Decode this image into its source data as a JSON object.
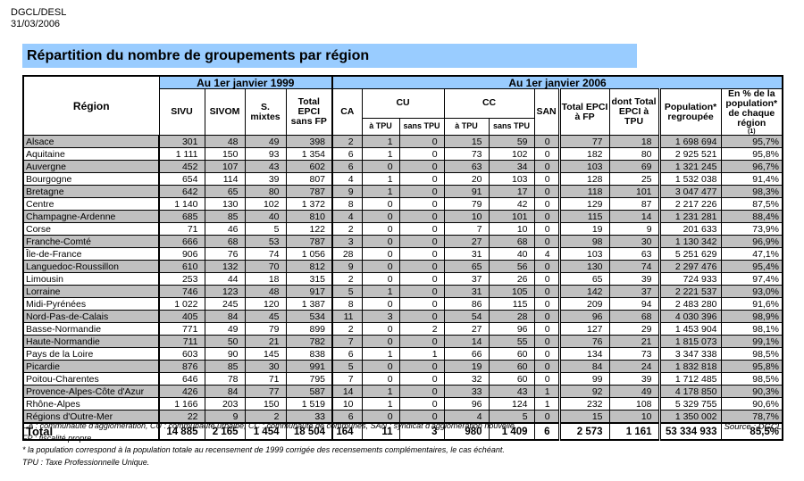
{
  "meta": {
    "org": "DGCL/DESL",
    "date": "31/03/2006"
  },
  "title": "Répartition du nombre de groupements par région",
  "colors": {
    "accent_blue": "#99CCFF",
    "row_grey": "#C0C0C0",
    "border": "#000000"
  },
  "table": {
    "header": {
      "region": "Région",
      "period_1999": "Au 1er janvier 1999",
      "period_2006": "Au 1er janvier 2006",
      "sivu": "SIVU",
      "sivom": "SIVOM",
      "s_mixtes": "S. mixtes",
      "total_epci_sans_fp": "Total EPCI sans FP",
      "ca": "CA",
      "cu": "CU",
      "cc": "CC",
      "san": "SAN",
      "a_tpu": "à TPU",
      "sans_tpu": "sans TPU",
      "total_epci_a_fp": "Total EPCI à FP",
      "dont_total_epci_a_tpu": "dont Total EPCI à TPU",
      "population_regroupee": "Population* regroupée",
      "pct_label": "En % de la population* de chaque région",
      "pct_note": "(1)"
    },
    "rows": [
      {
        "region": "Alsace",
        "values": [
          "301",
          "48",
          "49",
          "398",
          "2",
          "1",
          "0",
          "15",
          "59",
          "0",
          "77",
          "18",
          "1 698 694",
          "95,7%"
        ]
      },
      {
        "region": "Aquitaine",
        "values": [
          "1 111",
          "150",
          "93",
          "1 354",
          "6",
          "1",
          "0",
          "73",
          "102",
          "0",
          "182",
          "80",
          "2 925 521",
          "95,8%"
        ]
      },
      {
        "region": "Auvergne",
        "values": [
          "452",
          "107",
          "43",
          "602",
          "6",
          "0",
          "0",
          "63",
          "34",
          "0",
          "103",
          "69",
          "1 321 245",
          "96,7%"
        ]
      },
      {
        "region": "Bourgogne",
        "values": [
          "654",
          "114",
          "39",
          "807",
          "4",
          "1",
          "0",
          "20",
          "103",
          "0",
          "128",
          "25",
          "1 532 038",
          "91,4%"
        ]
      },
      {
        "region": "Bretagne",
        "values": [
          "642",
          "65",
          "80",
          "787",
          "9",
          "1",
          "0",
          "91",
          "17",
          "0",
          "118",
          "101",
          "3 047 477",
          "98,3%"
        ]
      },
      {
        "region": "Centre",
        "values": [
          "1 140",
          "130",
          "102",
          "1 372",
          "8",
          "0",
          "0",
          "79",
          "42",
          "0",
          "129",
          "87",
          "2 217 226",
          "87,5%"
        ]
      },
      {
        "region": "Champagne-Ardenne",
        "values": [
          "685",
          "85",
          "40",
          "810",
          "4",
          "0",
          "0",
          "10",
          "101",
          "0",
          "115",
          "14",
          "1 231 281",
          "88,4%"
        ]
      },
      {
        "region": "Corse",
        "values": [
          "71",
          "46",
          "5",
          "122",
          "2",
          "0",
          "0",
          "7",
          "10",
          "0",
          "19",
          "9",
          "201 633",
          "73,9%"
        ]
      },
      {
        "region": "Franche-Comté",
        "values": [
          "666",
          "68",
          "53",
          "787",
          "3",
          "0",
          "0",
          "27",
          "68",
          "0",
          "98",
          "30",
          "1 130 342",
          "96,9%"
        ]
      },
      {
        "region": "Île-de-France",
        "values": [
          "906",
          "76",
          "74",
          "1 056",
          "28",
          "0",
          "0",
          "31",
          "40",
          "4",
          "103",
          "63",
          "5 251 629",
          "47,1%"
        ]
      },
      {
        "region": "Languedoc-Roussillon",
        "values": [
          "610",
          "132",
          "70",
          "812",
          "9",
          "0",
          "0",
          "65",
          "56",
          "0",
          "130",
          "74",
          "2 297 476",
          "95,4%"
        ]
      },
      {
        "region": "Limousin",
        "values": [
          "253",
          "44",
          "18",
          "315",
          "2",
          "0",
          "0",
          "37",
          "26",
          "0",
          "65",
          "39",
          "724 933",
          "97,4%"
        ]
      },
      {
        "region": "Lorraine",
        "values": [
          "746",
          "123",
          "48",
          "917",
          "5",
          "1",
          "0",
          "31",
          "105",
          "0",
          "142",
          "37",
          "2 221 537",
          "93,0%"
        ]
      },
      {
        "region": "Midi-Pyrénées",
        "values": [
          "1 022",
          "245",
          "120",
          "1 387",
          "8",
          "0",
          "0",
          "86",
          "115",
          "0",
          "209",
          "94",
          "2 483 280",
          "91,6%"
        ]
      },
      {
        "region": "Nord-Pas-de-Calais",
        "values": [
          "405",
          "84",
          "45",
          "534",
          "11",
          "3",
          "0",
          "54",
          "28",
          "0",
          "96",
          "68",
          "4 030 396",
          "98,9%"
        ]
      },
      {
        "region": "Basse-Normandie",
        "values": [
          "771",
          "49",
          "79",
          "899",
          "2",
          "0",
          "2",
          "27",
          "96",
          "0",
          "127",
          "29",
          "1 453 904",
          "98,1%"
        ]
      },
      {
        "region": "Haute-Normandie",
        "values": [
          "711",
          "50",
          "21",
          "782",
          "7",
          "0",
          "0",
          "14",
          "55",
          "0",
          "76",
          "21",
          "1 815 073",
          "99,1%"
        ]
      },
      {
        "region": "Pays de la Loire",
        "values": [
          "603",
          "90",
          "145",
          "838",
          "6",
          "1",
          "1",
          "66",
          "60",
          "0",
          "134",
          "73",
          "3 347 338",
          "98,5%"
        ]
      },
      {
        "region": "Picardie",
        "values": [
          "876",
          "85",
          "30",
          "991",
          "5",
          "0",
          "0",
          "19",
          "60",
          "0",
          "84",
          "24",
          "1 832 818",
          "95,8%"
        ]
      },
      {
        "region": "Poitou-Charentes",
        "values": [
          "646",
          "78",
          "71",
          "795",
          "7",
          "0",
          "0",
          "32",
          "60",
          "0",
          "99",
          "39",
          "1 712 485",
          "98,5%"
        ]
      },
      {
        "region": "Provence-Alpes-Côte d'Azur",
        "values": [
          "426",
          "84",
          "77",
          "587",
          "14",
          "1",
          "0",
          "33",
          "43",
          "1",
          "92",
          "49",
          "4 178 850",
          "90,3%"
        ]
      },
      {
        "region": "Rhône-Alpes",
        "values": [
          "1 166",
          "203",
          "150",
          "1 519",
          "10",
          "1",
          "0",
          "96",
          "124",
          "1",
          "232",
          "108",
          "5 329 755",
          "90,6%"
        ]
      },
      {
        "region": "Régions d'Outre-Mer",
        "values": [
          "22",
          "9",
          "2",
          "33",
          "6",
          "0",
          "0",
          "4",
          "5",
          "0",
          "15",
          "10",
          "1 350 002",
          "78,7%"
        ]
      }
    ],
    "total": {
      "label": "Total",
      "values": [
        "14 885",
        "2 165",
        "1 454",
        "18 504",
        "164",
        "11",
        "3",
        "980",
        "1 409",
        "6",
        "2 573",
        "1 161",
        "53 334 933",
        "85,5%"
      ]
    }
  },
  "footnotes": [
    "CA : communauté d'agglomération, CU : communauté urbaine, CC : communauté de communes, SAN : syndicat d'agglomération nouvelle.",
    "FP : fiscalité propre.",
    "* la population correspond à la population totale au recensement de 1999 corrigée des recensements complémentaires, le cas échéant.",
    "TPU : Taxe Professionnelle Unique."
  ],
  "source": "Source : DGCL"
}
